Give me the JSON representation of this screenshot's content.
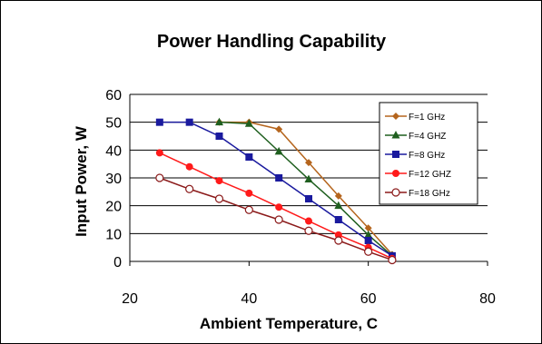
{
  "chart_data": {
    "type": "line",
    "title": "Power Handling Capability",
    "xlabel": "Ambient Temperature, C",
    "ylabel": "Input Power, W",
    "xlim": [
      20,
      80
    ],
    "ylim": [
      0,
      60
    ],
    "xticks": [
      20,
      40,
      60,
      80
    ],
    "yticks": [
      0,
      10,
      20,
      30,
      40,
      50,
      60
    ],
    "grid": "horizontal",
    "legend_position": "top-right",
    "series": [
      {
        "name": "F=1 GHz",
        "color": "#b5651d",
        "marker": "diamond",
        "points": [
          [
            35,
            50
          ],
          [
            40,
            50
          ],
          [
            45,
            47.5
          ],
          [
            50,
            35.5
          ],
          [
            55,
            23.5
          ],
          [
            60,
            12
          ],
          [
            64,
            2.5
          ]
        ]
      },
      {
        "name": "F=4 GHZ",
        "color": "#1f5f1f",
        "marker": "triangle",
        "points": [
          [
            35,
            50
          ],
          [
            40,
            49.5
          ],
          [
            45,
            39.5
          ],
          [
            50,
            29.5
          ],
          [
            55,
            20
          ],
          [
            60,
            9.5
          ],
          [
            64,
            2
          ]
        ]
      },
      {
        "name": "F=8 GHz",
        "color": "#1a1a9e",
        "marker": "square",
        "points": [
          [
            25,
            50
          ],
          [
            30,
            50
          ],
          [
            35,
            45
          ],
          [
            40,
            37.5
          ],
          [
            45,
            30
          ],
          [
            50,
            22.5
          ],
          [
            55,
            15
          ],
          [
            60,
            7.5
          ],
          [
            64,
            2
          ]
        ]
      },
      {
        "name": "F=12 GHZ",
        "color": "#ff1a1a",
        "marker": "circle",
        "points": [
          [
            25,
            39
          ],
          [
            30,
            34
          ],
          [
            35,
            29
          ],
          [
            40,
            24.5
          ],
          [
            45,
            19.5
          ],
          [
            50,
            14.5
          ],
          [
            55,
            9.5
          ],
          [
            60,
            5
          ],
          [
            64,
            1
          ]
        ]
      },
      {
        "name": "F=18 GHz",
        "color": "#8b1a1a",
        "marker": "open-circle",
        "points": [
          [
            25,
            30
          ],
          [
            30,
            26
          ],
          [
            35,
            22.5
          ],
          [
            40,
            18.5
          ],
          [
            45,
            15
          ],
          [
            50,
            11
          ],
          [
            55,
            7.5
          ],
          [
            60,
            3.5
          ],
          [
            64,
            0.5
          ]
        ]
      }
    ]
  }
}
